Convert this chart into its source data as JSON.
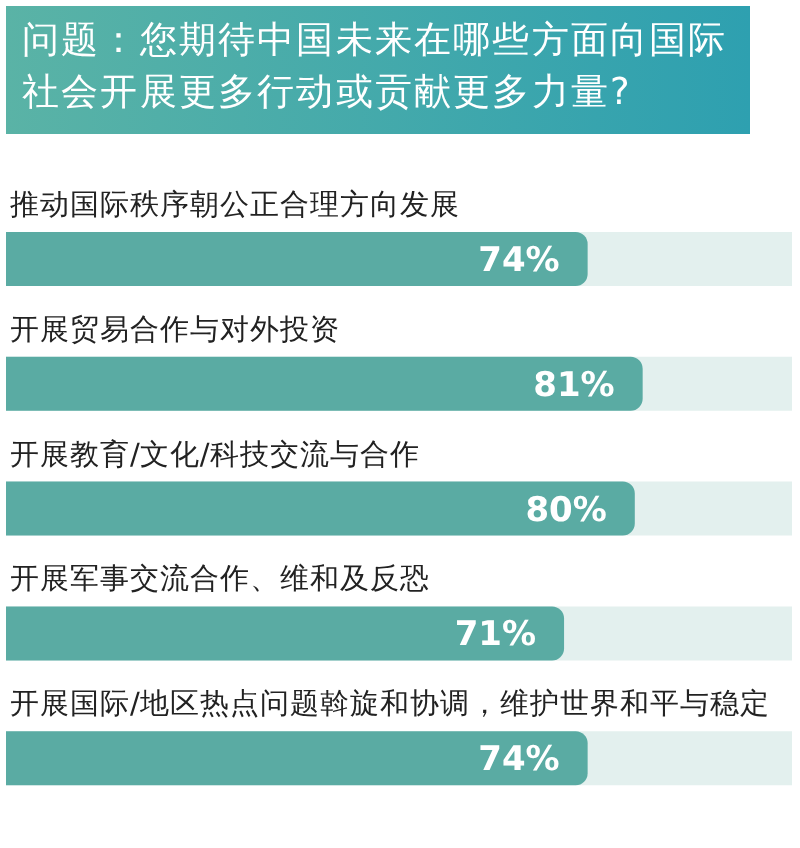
{
  "chart_data": {
    "type": "bar",
    "orientation": "horizontal",
    "title": "问题：您期待中国未来在哪些方面向国际社会开展更多行动或贡献更多力量?",
    "categories": [
      "推动国际秩序朝公正合理方向发展",
      "开展贸易合作与对外投资",
      "开展教育/文化/科技交流与合作",
      "开展军事交流合作、维和及反恐",
      "开展国际/地区热点问题斡旋和协调，维护世界和平与稳定"
    ],
    "values": [
      74,
      81,
      80,
      71,
      74
    ],
    "value_labels": [
      "74%",
      "81%",
      "80%",
      "71%",
      "74%"
    ],
    "color": "#5aaba3",
    "xlim": [
      0,
      100
    ],
    "tick_labels": false
  }
}
